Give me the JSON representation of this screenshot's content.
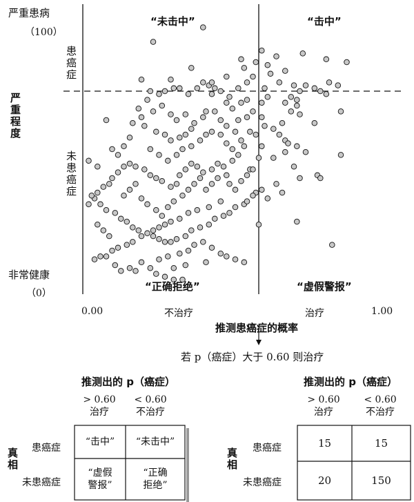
{
  "chart_data": {
    "type": "scatter",
    "xlim": [
      0,
      1
    ],
    "ylim": [
      0,
      100
    ],
    "threshold_x": 0.6,
    "threshold_y": 70,
    "x_ticks": [
      "0.00",
      "1.00"
    ],
    "x_region_labels": {
      "left": "不治疗",
      "right": "治疗"
    },
    "xlabel": "推测患癌症的概率",
    "ylabel": "严重程度",
    "y_top_label": "严重患病",
    "y_top_value": "（100）",
    "y_bottom_label": "非常健康",
    "y_bottom_value": "（0）",
    "y_upper_region": "患癌症",
    "y_lower_region": "未患癌症",
    "quadrants": {
      "top_left": "“未击中”",
      "top_right": "“击中”",
      "bottom_left": "“正确拒绝”",
      "bottom_right": "“虚假警报”"
    },
    "decision_rule": "若 p（癌症）大于 0.60 则治疗",
    "grid": false,
    "points": [
      [
        0.24,
        87
      ],
      [
        0.41,
        92
      ],
      [
        0.54,
        81
      ],
      [
        0.61,
        84
      ],
      [
        0.66,
        82
      ],
      [
        0.75,
        83
      ],
      [
        0.83,
        81
      ],
      [
        0.9,
        80
      ],
      [
        0.64,
        76
      ],
      [
        0.69,
        77
      ],
      [
        0.56,
        73
      ],
      [
        0.58,
        75
      ],
      [
        0.67,
        73
      ],
      [
        0.72,
        72
      ],
      [
        0.74,
        70
      ],
      [
        0.84,
        73
      ],
      [
        0.87,
        72
      ],
      [
        0.71,
        68
      ],
      [
        0.73,
        67
      ],
      [
        0.62,
        71
      ],
      [
        0.61,
        66
      ],
      [
        0.63,
        68
      ],
      [
        0.76,
        72
      ],
      [
        0.79,
        71
      ],
      [
        0.81,
        70
      ],
      [
        0.73,
        65
      ],
      [
        0.74,
        62
      ],
      [
        0.69,
        66
      ],
      [
        0.61,
        61
      ],
      [
        0.62,
        58
      ],
      [
        0.65,
        57
      ],
      [
        0.67,
        55
      ],
      [
        0.69,
        53
      ],
      [
        0.7,
        52
      ],
      [
        0.73,
        51
      ],
      [
        0.71,
        63
      ],
      [
        0.68,
        59
      ],
      [
        0.83,
        69
      ],
      [
        0.79,
        59
      ],
      [
        0.76,
        49
      ],
      [
        0.88,
        48
      ],
      [
        0.65,
        47
      ],
      [
        0.69,
        49
      ],
      [
        0.6,
        47
      ],
      [
        0.72,
        44
      ],
      [
        0.74,
        40
      ],
      [
        0.68,
        35
      ],
      [
        0.66,
        38
      ],
      [
        0.61,
        36
      ],
      [
        0.63,
        33
      ],
      [
        0.8,
        41
      ],
      [
        0.81,
        40
      ],
      [
        0.73,
        25
      ],
      [
        0.59,
        35
      ],
      [
        0.57,
        43
      ],
      [
        0.61,
        51
      ],
      [
        0.59,
        55
      ],
      [
        0.57,
        56
      ],
      [
        0.56,
        61
      ],
      [
        0.58,
        63
      ],
      [
        0.53,
        60
      ],
      [
        0.51,
        64
      ],
      [
        0.49,
        66
      ],
      [
        0.5,
        68
      ],
      [
        0.47,
        70
      ],
      [
        0.45,
        71
      ],
      [
        0.43,
        72
      ],
      [
        0.44,
        73
      ],
      [
        0.41,
        73
      ],
      [
        0.39,
        71
      ],
      [
        0.36,
        69
      ],
      [
        0.33,
        71
      ],
      [
        0.31,
        71
      ],
      [
        0.28,
        70
      ],
      [
        0.26,
        69
      ],
      [
        0.23,
        70
      ],
      [
        0.22,
        67
      ],
      [
        0.19,
        64
      ],
      [
        0.2,
        61
      ],
      [
        0.17,
        59
      ],
      [
        0.21,
        58
      ],
      [
        0.25,
        56
      ],
      [
        0.28,
        55
      ],
      [
        0.3,
        53
      ],
      [
        0.33,
        54
      ],
      [
        0.35,
        55
      ],
      [
        0.37,
        57
      ],
      [
        0.38,
        59
      ],
      [
        0.41,
        61
      ],
      [
        0.42,
        63
      ],
      [
        0.45,
        63
      ],
      [
        0.47,
        60
      ],
      [
        0.49,
        58
      ],
      [
        0.52,
        56
      ],
      [
        0.54,
        53
      ],
      [
        0.55,
        51
      ],
      [
        0.53,
        48
      ],
      [
        0.51,
        46
      ],
      [
        0.48,
        44
      ],
      [
        0.46,
        45
      ],
      [
        0.44,
        43
      ],
      [
        0.41,
        42
      ],
      [
        0.39,
        44
      ],
      [
        0.37,
        45
      ],
      [
        0.35,
        43
      ],
      [
        0.33,
        41
      ],
      [
        0.32,
        38
      ],
      [
        0.3,
        37
      ],
      [
        0.27,
        39
      ],
      [
        0.25,
        40
      ],
      [
        0.23,
        41
      ],
      [
        0.21,
        43
      ],
      [
        0.18,
        44
      ],
      [
        0.16,
        45
      ],
      [
        0.14,
        44
      ],
      [
        0.12,
        42
      ],
      [
        0.1,
        40
      ],
      [
        0.09,
        38
      ],
      [
        0.07,
        37
      ],
      [
        0.05,
        35
      ],
      [
        0.04,
        33
      ],
      [
        0.02,
        31
      ],
      [
        0.03,
        34
      ],
      [
        0.06,
        31
      ],
      [
        0.08,
        29
      ],
      [
        0.11,
        28
      ],
      [
        0.13,
        26
      ],
      [
        0.15,
        25
      ],
      [
        0.17,
        23
      ],
      [
        0.19,
        22
      ],
      [
        0.22,
        21
      ],
      [
        0.24,
        20
      ],
      [
        0.26,
        19
      ],
      [
        0.28,
        18
      ],
      [
        0.3,
        18
      ],
      [
        0.32,
        19
      ],
      [
        0.35,
        20
      ],
      [
        0.37,
        22
      ],
      [
        0.4,
        23
      ],
      [
        0.43,
        24
      ],
      [
        0.45,
        26
      ],
      [
        0.48,
        27
      ],
      [
        0.5,
        28
      ],
      [
        0.52,
        30
      ],
      [
        0.55,
        31
      ],
      [
        0.56,
        32
      ],
      [
        0.58,
        34
      ],
      [
        0.47,
        32
      ],
      [
        0.43,
        30
      ],
      [
        0.39,
        29
      ],
      [
        0.36,
        28
      ],
      [
        0.33,
        26
      ],
      [
        0.3,
        25
      ],
      [
        0.28,
        24
      ],
      [
        0.26,
        23
      ],
      [
        0.24,
        22
      ],
      [
        0.2,
        20
      ],
      [
        0.17,
        18
      ],
      [
        0.15,
        17
      ],
      [
        0.12,
        16
      ],
      [
        0.1,
        15
      ],
      [
        0.08,
        13
      ],
      [
        0.06,
        13
      ],
      [
        0.04,
        12
      ],
      [
        0.11,
        10
      ],
      [
        0.13,
        8
      ],
      [
        0.16,
        9
      ],
      [
        0.18,
        8
      ],
      [
        0.2,
        11
      ],
      [
        0.23,
        9
      ],
      [
        0.25,
        7
      ],
      [
        0.28,
        6
      ],
      [
        0.31,
        5
      ],
      [
        0.34,
        5
      ],
      [
        0.26,
        12
      ],
      [
        0.29,
        13
      ],
      [
        0.33,
        14
      ],
      [
        0.36,
        15
      ],
      [
        0.38,
        17
      ],
      [
        0.41,
        18
      ],
      [
        0.44,
        16
      ],
      [
        0.47,
        14
      ],
      [
        0.49,
        13
      ],
      [
        0.52,
        12
      ],
      [
        0.55,
        11
      ],
      [
        0.42,
        11
      ],
      [
        0.35,
        10
      ],
      [
        0.31,
        9
      ],
      [
        0.09,
        20
      ],
      [
        0.07,
        22
      ],
      [
        0.05,
        24
      ],
      [
        0.14,
        34
      ],
      [
        0.16,
        36
      ],
      [
        0.18,
        38
      ],
      [
        0.2,
        33
      ],
      [
        0.22,
        31
      ],
      [
        0.25,
        29
      ],
      [
        0.27,
        27
      ],
      [
        0.29,
        30
      ],
      [
        0.31,
        32
      ],
      [
        0.34,
        34
      ],
      [
        0.36,
        36
      ],
      [
        0.38,
        38
      ],
      [
        0.4,
        40
      ],
      [
        0.42,
        36
      ],
      [
        0.44,
        38
      ],
      [
        0.46,
        40
      ],
      [
        0.49,
        41
      ],
      [
        0.5,
        38
      ],
      [
        0.52,
        36
      ],
      [
        0.54,
        39
      ],
      [
        0.56,
        41
      ],
      [
        0.58,
        43
      ],
      [
        0.16,
        54
      ],
      [
        0.14,
        51
      ],
      [
        0.12,
        48
      ],
      [
        0.1,
        50
      ],
      [
        0.23,
        50
      ],
      [
        0.26,
        48
      ],
      [
        0.29,
        46
      ],
      [
        0.32,
        48
      ],
      [
        0.34,
        50
      ],
      [
        0.37,
        51
      ],
      [
        0.4,
        53
      ],
      [
        0.42,
        55
      ],
      [
        0.44,
        56
      ],
      [
        0.47,
        55
      ],
      [
        0.49,
        52
      ],
      [
        0.51,
        50
      ],
      [
        0.24,
        63
      ],
      [
        0.27,
        65
      ],
      [
        0.3,
        62
      ],
      [
        0.32,
        60
      ],
      [
        0.35,
        62
      ],
      [
        0.54,
        66
      ],
      [
        0.56,
        67
      ],
      [
        0.53,
        71
      ],
      [
        0.49,
        75
      ],
      [
        0.55,
        78
      ],
      [
        0.59,
        80
      ],
      [
        0.63,
        79
      ],
      [
        0.2,
        74
      ],
      [
        0.3,
        74
      ],
      [
        0.37,
        78
      ],
      [
        0.44,
        69
      ],
      [
        0.08,
        60
      ],
      [
        0.05,
        44
      ],
      [
        0.02,
        46
      ],
      [
        0.6,
        24
      ],
      [
        0.85,
        17
      ],
      [
        0.88,
        63
      ]
    ]
  },
  "tables": [
    {
      "header": "推测出的 p（癌症）",
      "col1": {
        "top": "> 0.60",
        "bottom": "治疗"
      },
      "col2": {
        "top": "< 0.60",
        "bottom": "不治疗"
      },
      "rows": [
        "患癌症",
        "未患癌症"
      ],
      "cells": [
        [
          "“击中”",
          "“未击中”"
        ],
        [
          "“虚假\n警报”",
          "“正确\n拒绝”"
        ]
      ],
      "truth_label": "真相"
    },
    {
      "header": "推测出的 p（癌症）",
      "col1": {
        "top": "> 0.60",
        "bottom": "治疗"
      },
      "col2": {
        "top": "< 0.60",
        "bottom": "不治疗"
      },
      "rows": [
        "患癌症",
        "未患癌症"
      ],
      "cells": [
        [
          "15",
          "15"
        ],
        [
          "20",
          "150"
        ]
      ],
      "truth_label": "真相"
    }
  ]
}
